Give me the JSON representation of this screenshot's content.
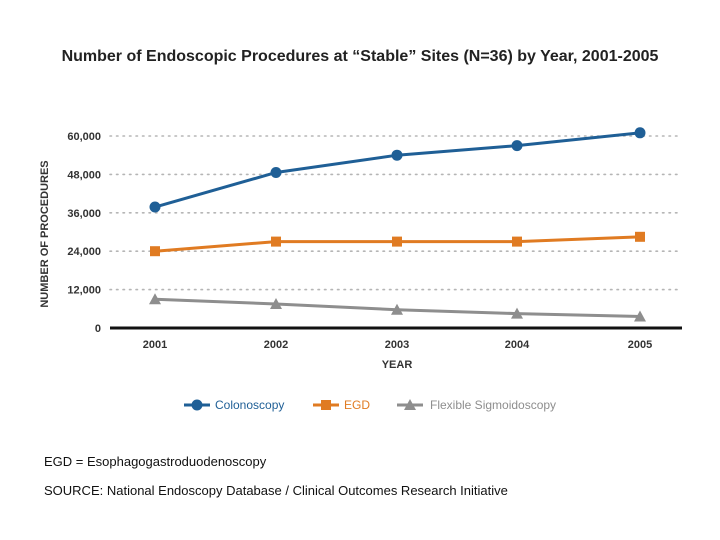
{
  "chart_data": {
    "type": "line",
    "title": "Number of Endoscopic Procedures at “Stable” Sites (N=36) by Year, 2001-2005",
    "xlabel": "YEAR",
    "ylabel": "NUMBER OF PROCEDURES",
    "ylim": [
      0,
      60000
    ],
    "yticks": [
      "0",
      "12,000",
      "24,000",
      "36,000",
      "48,000",
      "60,000"
    ],
    "categories": [
      "2001",
      "2002",
      "2003",
      "2004",
      "2005"
    ],
    "series": [
      {
        "name": "Colonoscopy",
        "color": "#1f5f96",
        "marker": "circle",
        "values": [
          37800,
          48600,
          54000,
          57000,
          61000
        ]
      },
      {
        "name": "EGD",
        "color": "#e07b22",
        "marker": "square",
        "values": [
          24000,
          27000,
          27000,
          27000,
          28500
        ]
      },
      {
        "name": "Flexible Sigmoidoscopy",
        "color": "#8e8e8e",
        "marker": "triangle",
        "values": [
          9000,
          7500,
          5700,
          4500,
          3600
        ]
      }
    ],
    "legend_position": "bottom",
    "grid": true
  },
  "footnotes": {
    "abbreviation": "EGD = Esophagogastroduodenoscopy",
    "source": "SOURCE: National Endoscopy Database / Clinical Outcomes Research Initiative"
  }
}
